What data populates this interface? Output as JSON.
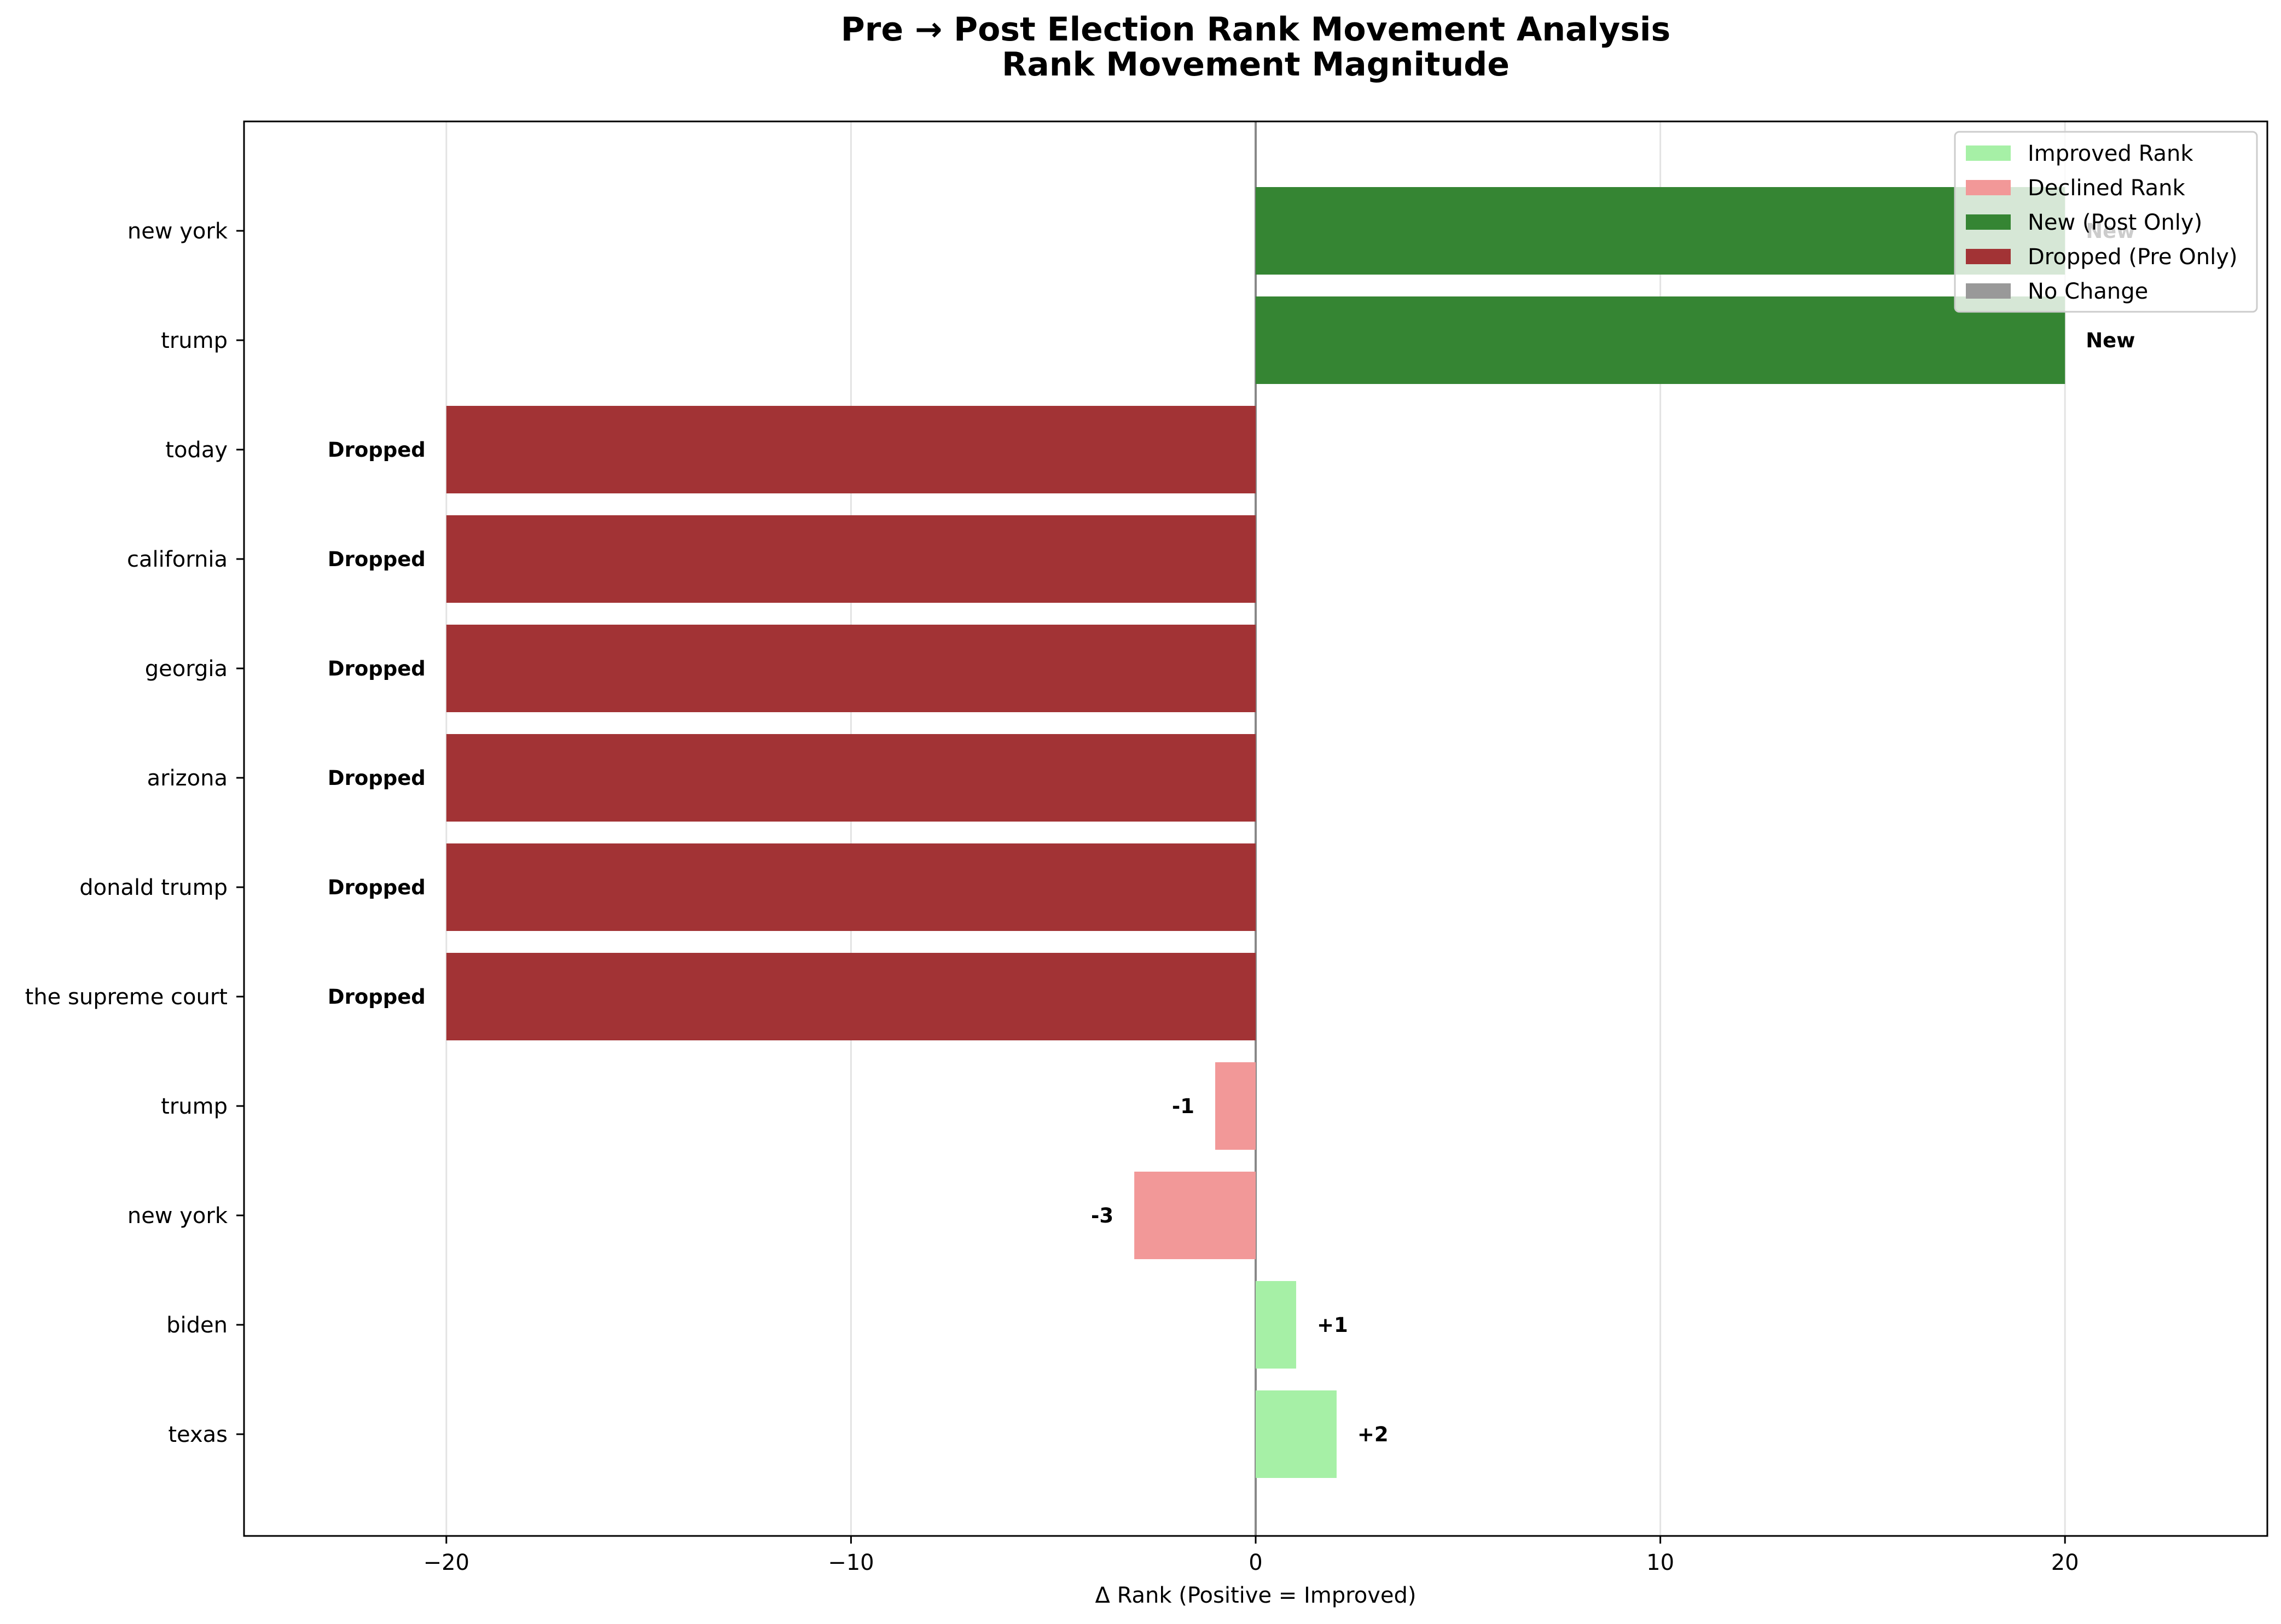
{
  "chart_data": {
    "type": "bar",
    "orientation": "horizontal",
    "title": "Pre → Post Election Rank Movement Analysis",
    "subtitle": "Rank Movement Magnitude",
    "xlabel": "Δ Rank (Positive = Improved)",
    "ylabel": "",
    "xlim": [
      -25,
      25
    ],
    "xticks": [
      -20,
      -10,
      0,
      10,
      20
    ],
    "xtick_labels": [
      "−20",
      "−10",
      "0",
      "10",
      "20"
    ],
    "grid": "vertical",
    "legend_position": "top-right",
    "categories": [
      "new york",
      "trump",
      "today",
      "california",
      "georgia",
      "arizona",
      "donald trump",
      "the supreme court",
      "trump",
      "new york",
      "biden",
      "texas"
    ],
    "values": [
      20,
      20,
      -20,
      -20,
      -20,
      -20,
      -20,
      -20,
      -1,
      -3,
      1,
      2
    ],
    "statuses": [
      "new",
      "new",
      "dropped",
      "dropped",
      "dropped",
      "dropped",
      "dropped",
      "dropped",
      "declined",
      "declined",
      "improved",
      "improved"
    ],
    "bar_labels": [
      "New",
      "New",
      "Dropped",
      "Dropped",
      "Dropped",
      "Dropped",
      "Dropped",
      "Dropped",
      "-1",
      "-3",
      "+1",
      "+2"
    ],
    "legend": [
      {
        "label": "Improved Rank",
        "status": "improved"
      },
      {
        "label": "Declined Rank",
        "status": "declined"
      },
      {
        "label": "New (Post Only)",
        "status": "new"
      },
      {
        "label": "Dropped (Pre Only)",
        "status": "dropped"
      },
      {
        "label": "No Change",
        "status": "nochange"
      }
    ],
    "colors": {
      "improved": "#a6f0a6",
      "declined": "#f29898",
      "new": "#358533",
      "dropped": "#a23335",
      "nochange": "#999999"
    }
  }
}
